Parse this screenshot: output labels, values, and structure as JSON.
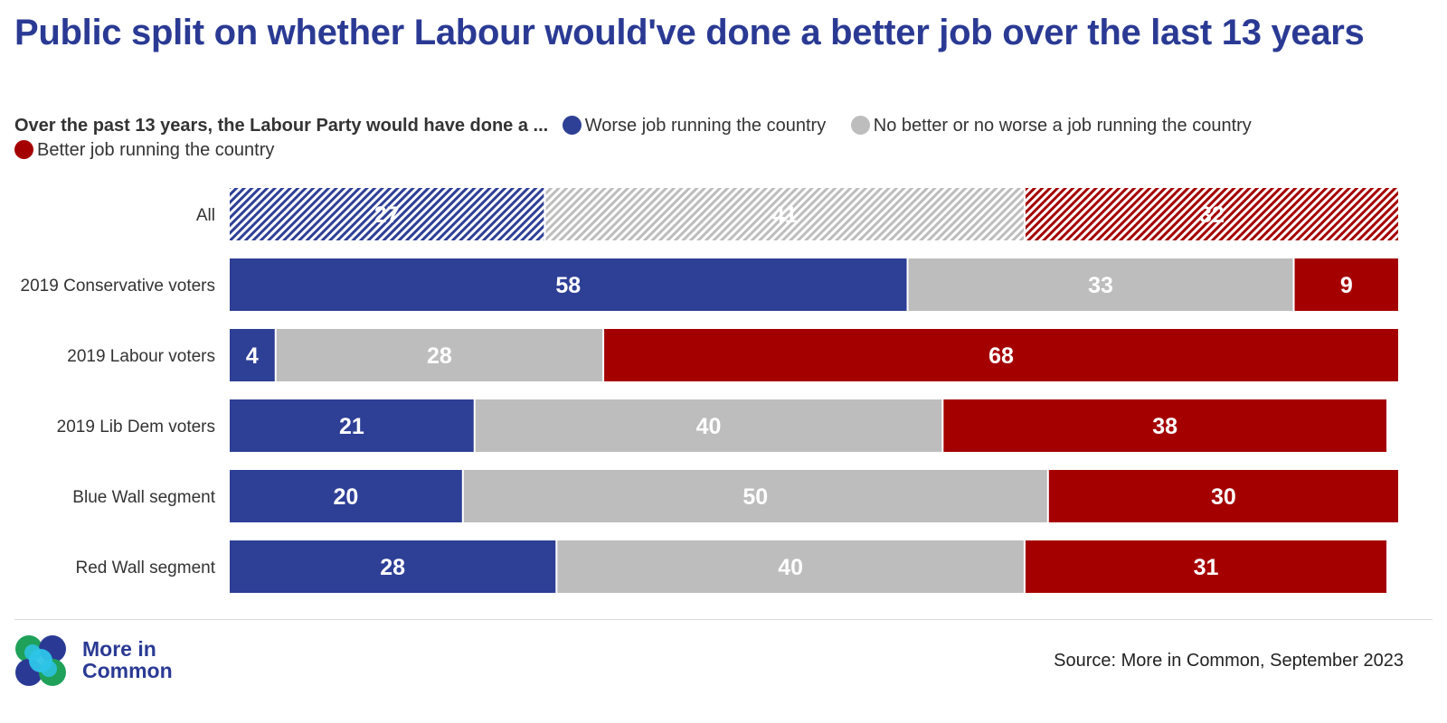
{
  "header": {
    "title": "Public split on whether Labour would've done a better job over the last 13 years"
  },
  "legend": {
    "lead": "Over the past 13 years, the Labour Party would have done a ...",
    "items": [
      {
        "label": "Worse job running the country",
        "color": "#2e3f96"
      },
      {
        "label": "No better or no worse a job running the country",
        "color": "#bdbdbd"
      },
      {
        "label": "Better job running the country",
        "color": "#a50000"
      }
    ]
  },
  "chart_data": {
    "type": "bar",
    "orientation": "horizontal",
    "stacked": true,
    "categories": [
      "All",
      "2019 Conservative voters",
      "2019 Labour voters",
      "2019 Lib Dem voters",
      "Blue Wall segment",
      "Red Wall segment"
    ],
    "series": [
      {
        "name": "Worse job running the country",
        "color": "#2e3f96",
        "values": [
          27,
          58,
          4,
          21,
          20,
          28
        ]
      },
      {
        "name": "No better or no worse a job running the country",
        "color": "#bdbdbd",
        "values": [
          41,
          33,
          28,
          40,
          50,
          40
        ]
      },
      {
        "name": "Better job running the country",
        "color": "#a50000",
        "values": [
          32,
          9,
          68,
          38,
          30,
          31
        ]
      }
    ],
    "hatched_categories": [
      "All"
    ],
    "xlim": [
      0,
      100
    ],
    "grid": false,
    "legend_position": "top",
    "data_labels": true
  },
  "footer": {
    "brand_line1": "More in",
    "brand_line2": "Common",
    "source": "Source: More in Common, September 2023"
  }
}
